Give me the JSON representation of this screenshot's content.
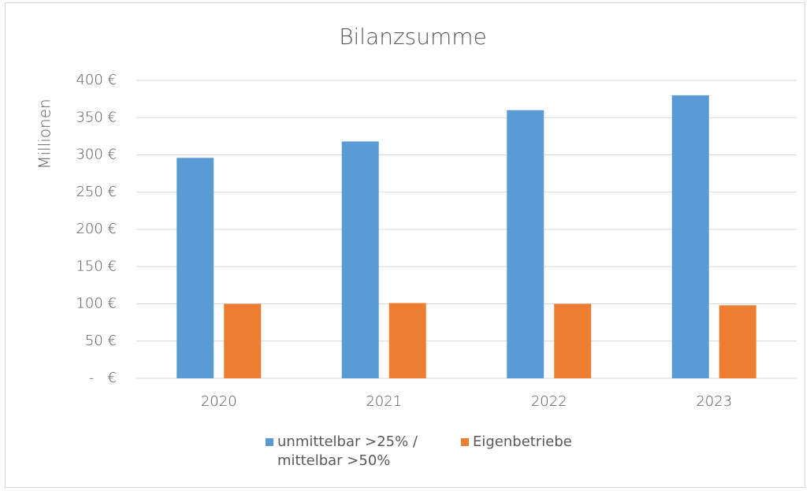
{
  "chart_data": {
    "type": "bar",
    "title": "Bilanzsumme",
    "y_label": "Millionen",
    "categories": [
      "2020",
      "2021",
      "2022",
      "2023"
    ],
    "series": [
      {
        "name": "unmittelbar >25% / mittelbar >50%",
        "color": "#5b9bd5",
        "values": [
          296,
          318,
          360,
          380
        ]
      },
      {
        "name": "Eigenbetriebe",
        "color": "#ed7d31",
        "values": [
          100,
          101,
          100,
          98
        ]
      }
    ],
    "ylim": [
      0,
      400
    ],
    "yticks": [
      {
        "value": 0,
        "label": "-   €"
      },
      {
        "value": 50,
        "label": "50 €"
      },
      {
        "value": 100,
        "label": "100 €"
      },
      {
        "value": 150,
        "label": "150 €"
      },
      {
        "value": 200,
        "label": "200 €"
      },
      {
        "value": 250,
        "label": "250 €"
      },
      {
        "value": 300,
        "label": "300 €"
      },
      {
        "value": 350,
        "label": "350 €"
      },
      {
        "value": 400,
        "label": "400 €"
      }
    ],
    "grid": true,
    "legend": "bottom"
  }
}
